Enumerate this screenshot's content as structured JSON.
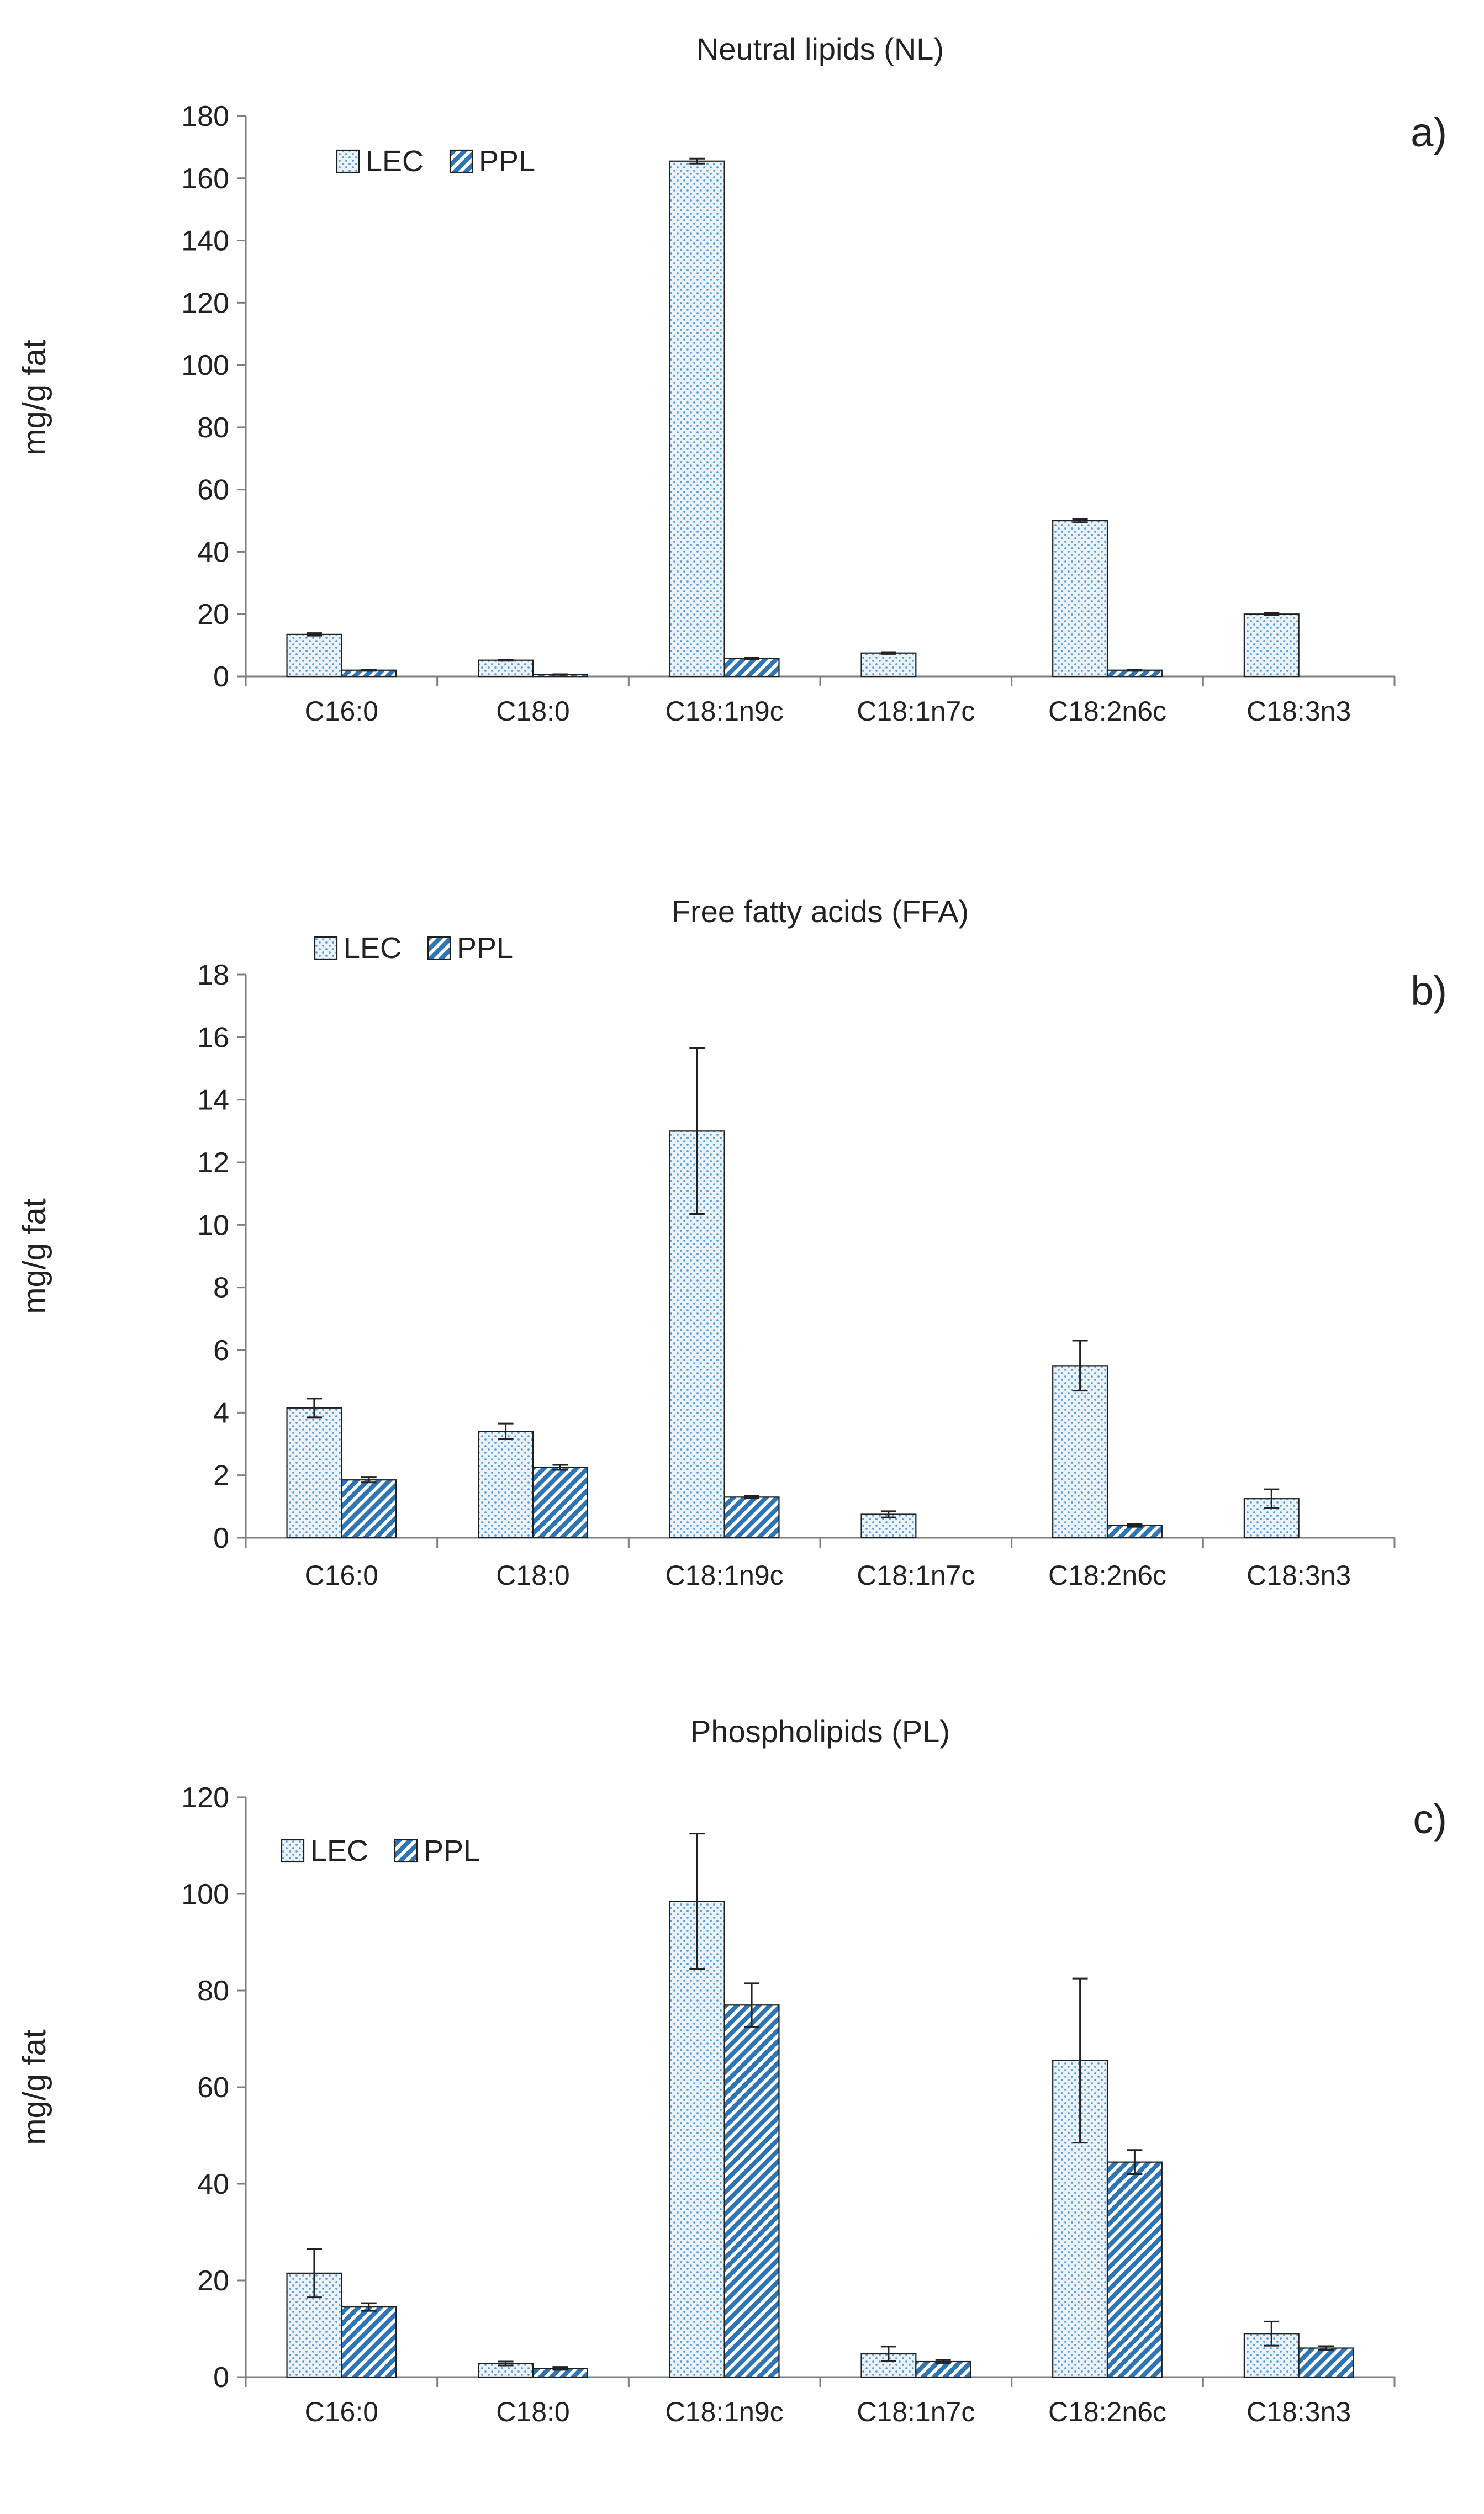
{
  "figure": {
    "series_names": [
      "LEC",
      "PPL"
    ],
    "colors": {
      "lec_dot": "#5b9bd5",
      "ppl_fill": "#2e75b6",
      "axis": "#7f7f7f",
      "bar_outline": "#1f1f1f"
    }
  },
  "chart_data": [
    {
      "type": "bar",
      "panel_letter": "a)",
      "title": "Neutral lipids (NL)",
      "ylabel": "mg/g fat",
      "ylim": [
        0,
        180
      ],
      "yticks": [
        "0",
        "20",
        "40",
        "60",
        "80",
        "100",
        "120",
        "140",
        "160",
        "180"
      ],
      "categories": [
        "C16:0",
        "C18:0",
        "C18:1n9c",
        "C18:1n7c",
        "C18:2n6c",
        "C18:3n3"
      ],
      "legend_position": "top-left",
      "series": [
        {
          "name": "LEC",
          "values": [
            13.5,
            5.2,
            165.5,
            7.5,
            50.0,
            20.0
          ],
          "errors": [
            0.4,
            0.2,
            0.8,
            0.3,
            0.5,
            0.4
          ]
        },
        {
          "name": "PPL",
          "values": [
            2.0,
            0.6,
            5.8,
            0,
            2.0,
            0
          ],
          "errors": [
            0.2,
            0.1,
            0.3,
            0,
            0.2,
            0
          ]
        }
      ]
    },
    {
      "type": "bar",
      "panel_letter": "b)",
      "title": "Free fatty acids (FFA)",
      "ylabel": "mg/g fat",
      "ylim": [
        0,
        18
      ],
      "yticks": [
        "0",
        "2",
        "4",
        "6",
        "8",
        "10",
        "12",
        "14",
        "16",
        "18"
      ],
      "categories": [
        "C16:0",
        "C18:0",
        "C18:1n9c",
        "C18:1n7c",
        "C18:2n6c",
        "C18:3n3"
      ],
      "legend_position": "top-left",
      "series": [
        {
          "name": "LEC",
          "values": [
            4.15,
            3.4,
            13.0,
            0.75,
            5.5,
            1.25
          ],
          "errors": [
            0.3,
            0.25,
            2.65,
            0.1,
            0.8,
            0.3
          ]
        },
        {
          "name": "PPL",
          "values": [
            1.85,
            2.25,
            1.3,
            0,
            0.4,
            0
          ],
          "errors": [
            0.08,
            0.08,
            0.04,
            0,
            0.05,
            0
          ]
        }
      ]
    },
    {
      "type": "bar",
      "panel_letter": "c)",
      "title": "Phospholipids (PL)",
      "ylabel": "mg/g fat",
      "ylim": [
        0,
        120
      ],
      "yticks": [
        "0",
        "20",
        "40",
        "60",
        "80",
        "100",
        "120"
      ],
      "categories": [
        "C16:0",
        "C18:0",
        "C18:1n9c",
        "C18:1n7c",
        "C18:2n6c",
        "C18:3n3"
      ],
      "legend_position": "top-left",
      "series": [
        {
          "name": "LEC",
          "values": [
            21.5,
            2.8,
            98.5,
            4.8,
            65.5,
            9.0
          ],
          "errors": [
            5.0,
            0.4,
            14.0,
            1.5,
            17.0,
            2.5
          ]
        },
        {
          "name": "PPL",
          "values": [
            14.5,
            1.8,
            77.0,
            3.2,
            44.5,
            6.0
          ],
          "errors": [
            0.8,
            0.3,
            4.5,
            0.3,
            2.5,
            0.4
          ]
        }
      ]
    }
  ]
}
